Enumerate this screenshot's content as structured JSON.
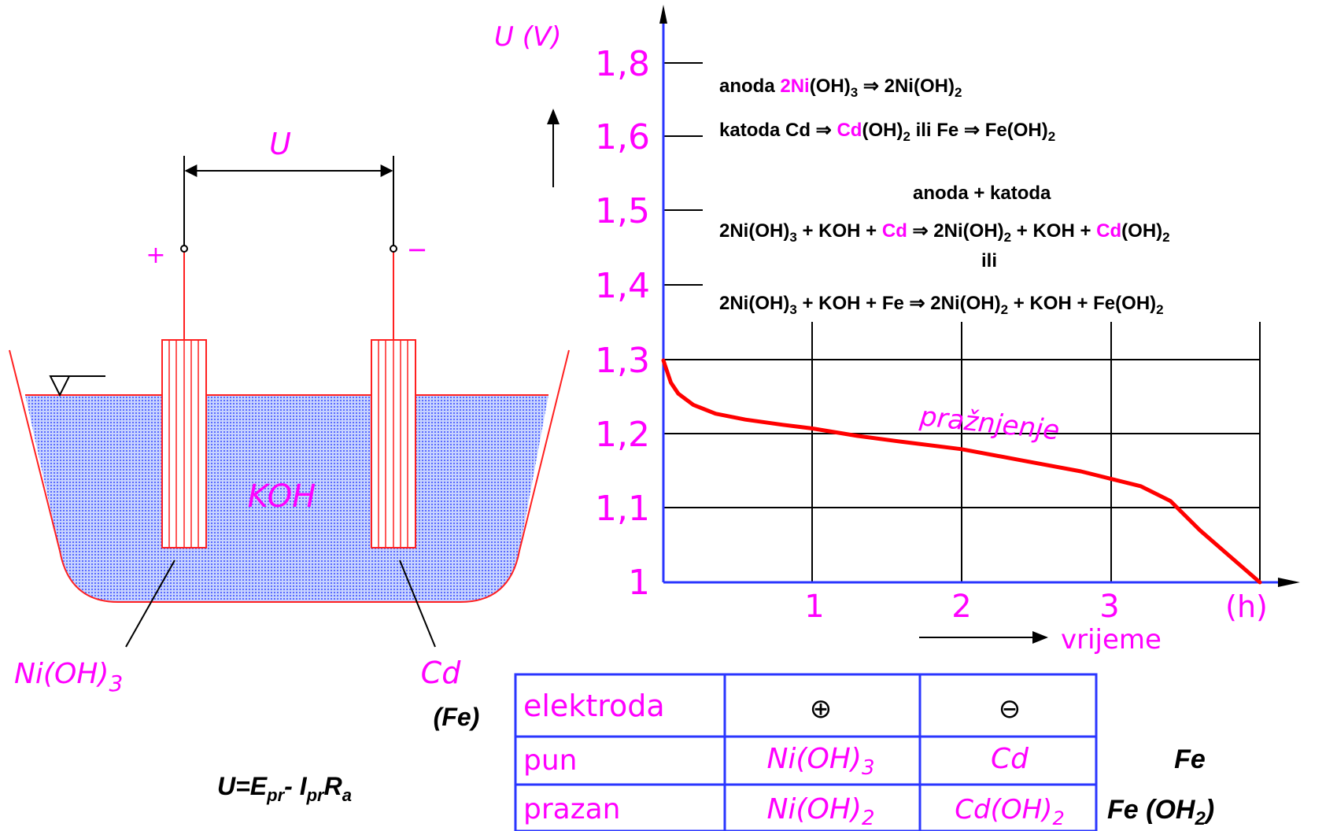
{
  "cell": {
    "voltage_label": "U",
    "plus": "+",
    "minus": "−",
    "electrolyte": "KOH",
    "pos_electrode": {
      "base": "Ni(OH)",
      "sub": "3"
    },
    "neg_electrode": "Cd",
    "neg_alt": "(Fe)",
    "formula": {
      "U": "U=E",
      "pr1": "pr",
      "dash": "- I",
      "pr2": "pr",
      "R": "R",
      "a": "a"
    }
  },
  "chart_data": {
    "type": "line",
    "title": "",
    "ylabel": "U (V)",
    "xlabel": "vrijeme",
    "x_unit": "(h)",
    "ylim": [
      1.0,
      1.8
    ],
    "xlim": [
      0,
      4
    ],
    "y_ticks": [
      "1",
      "1,1",
      "1,2",
      "1,3",
      "1,4",
      "1,5",
      "1,6",
      "1,8"
    ],
    "x_ticks": [
      "1",
      "2",
      "3"
    ],
    "series": [
      {
        "name": "pražnjenje",
        "color": "#ff0000",
        "points": [
          [
            0,
            1.3
          ],
          [
            0.05,
            1.27
          ],
          [
            0.1,
            1.255
          ],
          [
            0.2,
            1.24
          ],
          [
            0.35,
            1.228
          ],
          [
            0.55,
            1.22
          ],
          [
            0.8,
            1.213
          ],
          [
            1.0,
            1.208
          ],
          [
            1.3,
            1.198
          ],
          [
            1.6,
            1.19
          ],
          [
            2.0,
            1.18
          ],
          [
            2.4,
            1.165
          ],
          [
            2.8,
            1.15
          ],
          [
            3.0,
            1.14
          ],
          [
            3.2,
            1.13
          ],
          [
            3.4,
            1.11
          ],
          [
            3.6,
            1.07
          ],
          [
            3.8,
            1.035
          ],
          [
            4.0,
            1.0
          ]
        ]
      }
    ]
  },
  "reactions": {
    "line1": {
      "t1": "anoda   ",
      "hl": "2Ni",
      "t2": "(OH)",
      "s1": "3",
      "arrow": " ⇒ ",
      "t3": "2Ni(OH)",
      "s2": "2"
    },
    "line2": {
      "t1": "katoda Cd ⇒ ",
      "hl": "Cd",
      "t2": "(OH)",
      "s1": "2",
      "t3": "   ili    Fe ⇒ Fe(OH)",
      "s2": "2"
    },
    "heading": "anoda + katoda",
    "line3": {
      "t1": "2Ni(OH)",
      "s1": "3",
      "t2": " + KOH + ",
      "hl1": "Cd",
      "t3": " ⇒ 2Ni(OH)",
      "s2": "2",
      "t4": " + KOH + ",
      "hl2": "Cd",
      "t5": "(OH)",
      "s3": "2"
    },
    "ili": "ili",
    "line4": {
      "t1": "2Ni(OH)",
      "s1": "3",
      "t2": " + KOH + Fe ⇒ 2Ni(OH)",
      "s2": "2",
      "t3": " + KOH + Fe(OH)",
      "s3": "2"
    }
  },
  "table": {
    "headers": [
      "elektroda",
      "⊕",
      "⊖"
    ],
    "rows": [
      {
        "label": "pun",
        "pos": {
          "base": "Ni(OH)",
          "sub": "3"
        },
        "neg": "Cd"
      },
      {
        "label": "prazan",
        "pos": {
          "base": "Ni(OH)",
          "sub": "2"
        },
        "neg": {
          "base": "Cd(OH)",
          "sub": "2"
        }
      }
    ]
  },
  "side": {
    "fe": "Fe",
    "feoh": "Fe (OH",
    "feoh_sub": "2",
    "feoh_end": ")"
  },
  "colors": {
    "axis": "#2a36ff",
    "curve": "#ff0000",
    "label": "#ff00ff",
    "electrolyte": "#b8c8ff",
    "table": "#2a36ff"
  }
}
